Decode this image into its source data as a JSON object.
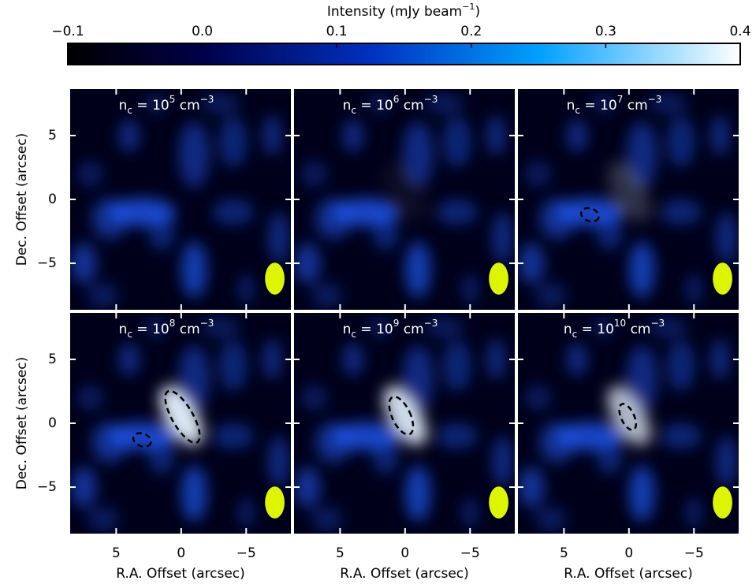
{
  "colorbar": {
    "label": [
      "Intensity (mJy beam",
      "−1",
      ")"
    ],
    "lim": [
      -0.1,
      0.4
    ],
    "ticks": [
      {
        "value": -0.1,
        "label": "−0.1"
      },
      {
        "value": 0,
        "label": "0.0"
      },
      0.1,
      0.2,
      0.3,
      0.4
    ]
  },
  "chart_data": [
    {
      "type": "image",
      "title": [
        "n",
        "c",
        " = 10",
        "5",
        " cm",
        "−3"
      ],
      "ylabel": "Dec. Offset (arcsec)",
      "xlim": [
        8.6,
        -8.5
      ],
      "ylim": [
        -8.7,
        8.7
      ],
      "xticks": [
        5,
        0,
        {
          "value": -5,
          "label": "−5"
        }
      ],
      "yticks": [
        5,
        0,
        {
          "value": -5,
          "label": "−5"
        }
      ]
    },
    {
      "type": "image",
      "title": [
        "n",
        "c",
        " = 10",
        "6",
        " cm",
        "−3"
      ],
      "xlim": [
        8.6,
        -8.5
      ],
      "ylim": [
        -8.7,
        8.7
      ],
      "xticks": [
        5,
        0,
        {
          "value": -5,
          "label": "−5"
        }
      ],
      "yticks": [
        5,
        0,
        {
          "value": -5,
          "label": "−5"
        }
      ]
    },
    {
      "type": "image",
      "title": [
        "n",
        "c",
        " = 10",
        "7",
        " cm",
        "−3"
      ],
      "xlim": [
        8.6,
        -8.5
      ],
      "ylim": [
        -8.7,
        8.7
      ],
      "xticks": [
        5,
        0,
        {
          "value": -5,
          "label": "−5"
        }
      ],
      "yticks": [
        5,
        0,
        {
          "value": -5,
          "label": "−5"
        }
      ]
    },
    {
      "type": "image",
      "title": [
        "n",
        "c",
        " = 10",
        "8",
        " cm",
        "−3"
      ],
      "ylabel": "Dec. Offset (arcsec)",
      "xlabel": "R.A. Offset (arcsec)",
      "xlim": [
        8.6,
        -8.5
      ],
      "ylim": [
        -8.7,
        8.7
      ],
      "xticks": [
        5,
        0,
        {
          "value": -5,
          "label": "−5"
        }
      ],
      "yticks": [
        5,
        0,
        {
          "value": -5,
          "label": "−5"
        }
      ]
    },
    {
      "type": "image",
      "title": [
        "n",
        "c",
        " = 10",
        "9",
        " cm",
        "−3"
      ],
      "xlabel": "R.A. Offset (arcsec)",
      "xlim": [
        8.6,
        -8.5
      ],
      "ylim": [
        -8.7,
        8.7
      ],
      "xticks": [
        5,
        0,
        {
          "value": -5,
          "label": "−5"
        }
      ],
      "yticks": [
        5,
        0,
        {
          "value": -5,
          "label": "−5"
        }
      ]
    },
    {
      "type": "image",
      "title": [
        "n",
        "c",
        " = 10",
        "10",
        " cm",
        "−3"
      ],
      "xlabel": "R.A. Offset (arcsec)",
      "xlim": [
        8.6,
        -8.5
      ],
      "ylim": [
        -8.7,
        8.7
      ],
      "xticks": [
        5,
        0,
        {
          "value": -5,
          "label": "−5"
        }
      ],
      "yticks": [
        5,
        0,
        {
          "value": -5,
          "label": "−5"
        }
      ]
    }
  ]
}
